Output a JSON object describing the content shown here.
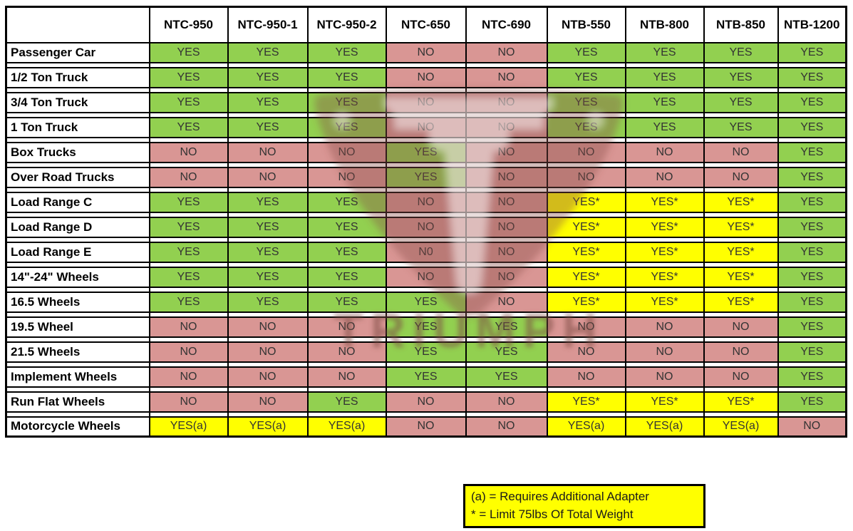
{
  "chart_data": {
    "type": "table",
    "title": "Tire changer model compatibility matrix",
    "corner_label": "",
    "columns": [
      "NTC-950",
      "NTC-950-1",
      "NTC-950-2",
      "NTC-650",
      "NTC-690",
      "NTB-550",
      "NTB-800",
      "NTB-850",
      "NTB-1200"
    ],
    "rows": [
      {
        "label": "Passenger Car",
        "values": [
          "YES",
          "YES",
          "YES",
          "NO",
          "NO",
          "YES",
          "YES",
          "YES",
          "YES"
        ]
      },
      {
        "label": "1/2 Ton Truck",
        "values": [
          "YES",
          "YES",
          "YES",
          "NO",
          "NO",
          "YES",
          "YES",
          "YES",
          "YES"
        ]
      },
      {
        "label": "3/4 Ton Truck",
        "values": [
          "YES",
          "YES",
          "YES",
          "NO",
          "NO",
          "YES",
          "YES",
          "YES",
          "YES"
        ]
      },
      {
        "label": "1 Ton Truck",
        "values": [
          "YES",
          "YES",
          "YES",
          "NO",
          "NO",
          "YES",
          "YES",
          "YES",
          "YES"
        ]
      },
      {
        "label": "Box Trucks",
        "values": [
          "NO",
          "NO",
          "NO",
          "YES",
          "NO",
          "NO",
          "NO",
          "NO",
          "YES"
        ]
      },
      {
        "label": "Over Road Trucks",
        "values": [
          "NO",
          "NO",
          "NO",
          "YES",
          "NO",
          "NO",
          "NO",
          "NO",
          "YES"
        ]
      },
      {
        "label": "Load Range C",
        "values": [
          "YES",
          "YES",
          "YES",
          "NO",
          "NO",
          "YES*",
          "YES*",
          "YES*",
          "YES"
        ]
      },
      {
        "label": "Load Range D",
        "values": [
          "YES",
          "YES",
          "YES",
          "NO",
          "NO",
          "YES*",
          "YES*",
          "YES*",
          "YES"
        ]
      },
      {
        "label": "Load Range E",
        "values": [
          "YES",
          "YES",
          "YES",
          "N0",
          "NO",
          "YES*",
          "YES*",
          "YES*",
          "YES"
        ]
      },
      {
        "label": "14\"-24\" Wheels",
        "values": [
          "YES",
          "YES",
          "YES",
          "NO",
          "NO",
          "YES*",
          "YES*",
          "YES*",
          "YES"
        ]
      },
      {
        "label": "16.5 Wheels",
        "values": [
          "YES",
          "YES",
          "YES",
          "YES",
          "NO",
          "YES*",
          "YES*",
          "YES*",
          "YES"
        ]
      },
      {
        "label": "19.5 Wheel",
        "values": [
          "NO",
          "NO",
          "NO",
          "YES",
          "YES",
          "NO",
          "NO",
          "NO",
          "YES"
        ]
      },
      {
        "label": "21.5 Wheels",
        "values": [
          "NO",
          "NO",
          "NO",
          "YES",
          "YES",
          "NO",
          "NO",
          "NO",
          "YES"
        ]
      },
      {
        "label": "Implement Wheels",
        "values": [
          "NO",
          "NO",
          "NO",
          "YES",
          "YES",
          "NO",
          "NO",
          "NO",
          "YES"
        ]
      },
      {
        "label": "Run Flat Wheels",
        "values": [
          "NO",
          "NO",
          "YES",
          "NO",
          "NO",
          "YES*",
          "YES*",
          "YES*",
          "YES"
        ]
      },
      {
        "label": "Motorcycle Wheels",
        "values": [
          "YES(a)",
          "YES(a)",
          "YES(a)",
          "NO",
          "NO",
          "YES(a)",
          "YES(a)",
          "YES(a)",
          "NO"
        ]
      }
    ],
    "legend_position": "bottom-right",
    "grid": true
  },
  "legend": {
    "lines": [
      "(a) = Requires Additional Adapter",
      "* = Limit 75lbs Of Total Weight"
    ]
  },
  "watermark": {
    "text": "TRIUMPH"
  },
  "colors": {
    "yes_green": "#92D050",
    "no_pink": "#D99694",
    "conditional_yellow": "#FFFF00",
    "grid_black": "#000000",
    "value_text": "#333333"
  }
}
